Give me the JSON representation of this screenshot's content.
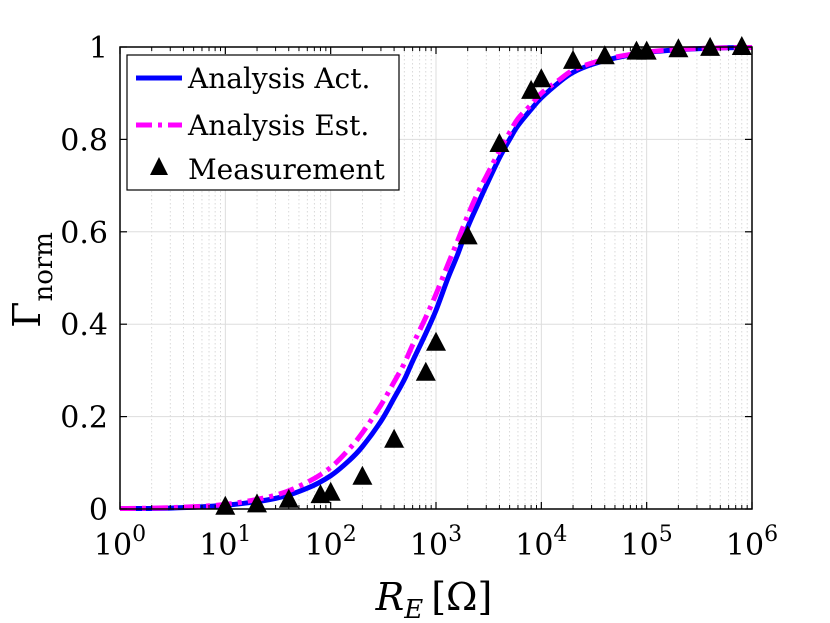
{
  "chart_data": {
    "type": "line",
    "x_scale": "log",
    "xlim": [
      1,
      1000000
    ],
    "ylim": [
      0,
      1
    ],
    "x_ticks": [
      {
        "value": 1,
        "base": "10",
        "exp": "0"
      },
      {
        "value": 10,
        "base": "10",
        "exp": "1"
      },
      {
        "value": 100,
        "base": "10",
        "exp": "2"
      },
      {
        "value": 1000,
        "base": "10",
        "exp": "3"
      },
      {
        "value": 10000,
        "base": "10",
        "exp": "4"
      },
      {
        "value": 100000,
        "base": "10",
        "exp": "5"
      },
      {
        "value": 1000000,
        "base": "10",
        "exp": "6"
      }
    ],
    "y_ticks": [
      {
        "value": 0,
        "label": "0"
      },
      {
        "value": 0.2,
        "label": "0.2"
      },
      {
        "value": 0.4,
        "label": "0.4"
      },
      {
        "value": 0.6,
        "label": "0.6"
      },
      {
        "value": 0.8,
        "label": "0.8"
      },
      {
        "value": 1,
        "label": "1"
      }
    ],
    "xlabel": {
      "main": "R",
      "sub": "E",
      "unit": "[Ω]"
    },
    "ylabel": {
      "main": "Γ",
      "sub": "norm"
    },
    "grid": true,
    "legend_position": "top-left",
    "series": [
      {
        "name": "Analysis Act.",
        "style": "solid",
        "color": "#0000ff",
        "x": [
          1,
          3,
          10,
          30,
          60,
          100,
          150,
          200,
          300,
          400,
          500,
          600,
          800,
          1000,
          1300,
          1600,
          2000,
          2500,
          3000,
          4000,
          5000,
          6000,
          8000,
          10000,
          15000,
          20000,
          30000,
          50000,
          100000,
          200000,
          500000,
          1000000
        ],
        "y": [
          0.001,
          0.002,
          0.008,
          0.023,
          0.045,
          0.072,
          0.105,
          0.135,
          0.19,
          0.24,
          0.28,
          0.32,
          0.38,
          0.43,
          0.5,
          0.55,
          0.61,
          0.66,
          0.7,
          0.76,
          0.8,
          0.83,
          0.865,
          0.89,
          0.925,
          0.945,
          0.962,
          0.976,
          0.988,
          0.994,
          0.998,
          0.999
        ]
      },
      {
        "name": "Analysis Est.",
        "style": "dashdot",
        "color": "#ff00ff",
        "x": [
          1,
          3,
          10,
          30,
          60,
          100,
          150,
          200,
          300,
          400,
          500,
          600,
          800,
          1000,
          1300,
          1600,
          2000,
          2500,
          3000,
          4000,
          5000,
          6000,
          8000,
          10000,
          15000,
          20000,
          30000,
          50000,
          100000,
          200000,
          500000,
          1000000
        ],
        "y": [
          0.001,
          0.003,
          0.01,
          0.03,
          0.058,
          0.09,
          0.13,
          0.165,
          0.225,
          0.275,
          0.315,
          0.355,
          0.415,
          0.465,
          0.53,
          0.58,
          0.635,
          0.685,
          0.72,
          0.775,
          0.815,
          0.845,
          0.875,
          0.9,
          0.93,
          0.95,
          0.965,
          0.978,
          0.989,
          0.995,
          0.998,
          0.999
        ]
      },
      {
        "name": "Measurement",
        "style": "marker",
        "color": "#000000",
        "marker": "triangle",
        "x": [
          10,
          20,
          40,
          80,
          100,
          200,
          400,
          800,
          1000,
          2000,
          4000,
          8000,
          10000,
          20000,
          40000,
          80000,
          100000,
          200000,
          400000,
          800000
        ],
        "y": [
          0.005,
          0.01,
          0.02,
          0.03,
          0.035,
          0.07,
          0.15,
          0.295,
          0.36,
          0.59,
          0.79,
          0.905,
          0.93,
          0.97,
          0.98,
          0.99,
          0.99,
          0.995,
          0.998,
          1.0
        ]
      }
    ]
  }
}
